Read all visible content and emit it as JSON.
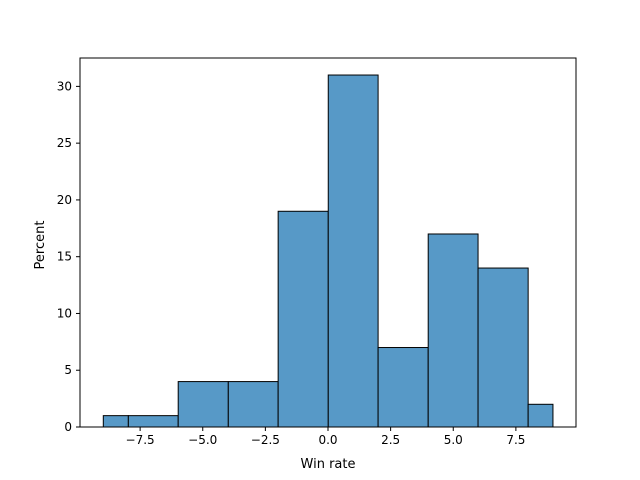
{
  "chart_data": {
    "type": "bar",
    "title": "",
    "xlabel": "Win rate",
    "ylabel": "Percent",
    "bins": [
      {
        "x0": -8.97,
        "x1": -7.97,
        "value": 1
      },
      {
        "x0": -7.97,
        "x1": -5.98,
        "value": 1
      },
      {
        "x0": -5.98,
        "x1": -3.98,
        "value": 4
      },
      {
        "x0": -3.98,
        "x1": -1.99,
        "value": 4
      },
      {
        "x0": -1.99,
        "x1": 0.01,
        "value": 19
      },
      {
        "x0": 0.01,
        "x1": 2.0,
        "value": 31
      },
      {
        "x0": 2.0,
        "x1": 4.0,
        "value": 7
      },
      {
        "x0": 4.0,
        "x1": 5.99,
        "value": 17
      },
      {
        "x0": 5.99,
        "x1": 7.99,
        "value": 14
      },
      {
        "x0": 7.99,
        "x1": 8.98,
        "value": 2
      }
    ],
    "xlim": [
      -9.9,
      9.9
    ],
    "ylim": [
      0,
      32.5
    ],
    "xticks": [
      -7.5,
      -5.0,
      -2.5,
      0.0,
      2.5,
      5.0,
      7.5
    ],
    "xtick_labels": [
      "−7.5",
      "−5.0",
      "−2.5",
      "0.0",
      "2.5",
      "5.0",
      "7.5"
    ],
    "yticks": [
      0,
      5,
      10,
      15,
      20,
      25,
      30
    ],
    "ytick_labels": [
      "0",
      "5",
      "10",
      "15",
      "20",
      "25",
      "30"
    ],
    "grid": false,
    "bar_color": "#5799c7",
    "edge_color": "#000000"
  }
}
